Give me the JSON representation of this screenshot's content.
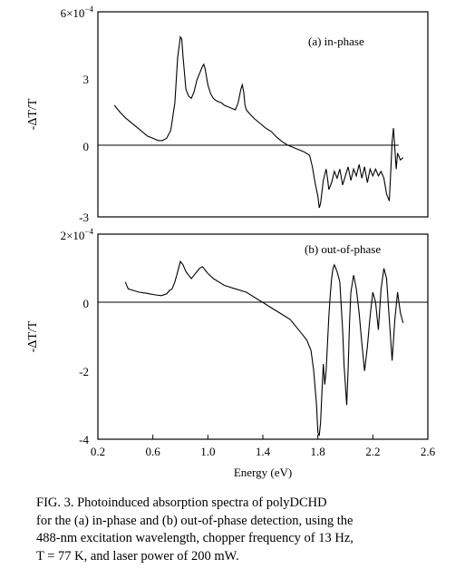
{
  "chart_data": [
    {
      "type": "line",
      "panel_label": "(a)  in-phase",
      "ylabel": "-ΔT/T",
      "y_scale_label": "6×10",
      "y_scale_exp": "−4",
      "ylim": [
        -3,
        6
      ],
      "xlim": [
        0.2,
        2.6
      ],
      "y_ticks": [
        "0",
        "3",
        "-3"
      ],
      "series": [
        {
          "x": [
            0.32,
            0.36,
            0.4,
            0.44,
            0.48,
            0.52,
            0.56,
            0.6,
            0.64,
            0.67,
            0.7,
            0.73,
            0.76,
            0.78,
            0.8,
            0.81,
            0.82,
            0.84,
            0.86,
            0.88,
            0.9,
            0.92,
            0.94,
            0.96,
            0.97,
            0.98,
            1.0,
            1.02,
            1.04,
            1.06,
            1.08,
            1.1,
            1.12,
            1.14,
            1.16,
            1.18,
            1.2,
            1.22,
            1.24,
            1.25,
            1.26,
            1.27,
            1.28,
            1.3,
            1.34,
            1.38,
            1.42,
            1.46,
            1.5,
            1.54,
            1.58,
            1.62,
            1.66,
            1.7,
            1.74,
            1.76,
            1.78,
            1.8,
            1.81,
            1.82,
            1.84,
            1.86,
            1.87,
            1.88,
            1.9,
            1.92,
            1.94,
            1.96,
            1.98,
            2.0,
            2.02,
            2.04,
            2.06,
            2.08,
            2.1,
            2.12,
            2.14,
            2.16,
            2.18,
            2.2,
            2.22,
            2.24,
            2.26,
            2.28,
            2.3,
            2.32,
            2.33,
            2.34,
            2.35,
            2.36,
            2.37,
            2.38,
            2.4,
            2.42
          ],
          "y": [
            1.9,
            1.6,
            1.35,
            1.15,
            0.95,
            0.75,
            0.55,
            0.45,
            0.35,
            0.35,
            0.45,
            0.8,
            2.0,
            4.0,
            4.9,
            4.8,
            4.0,
            2.6,
            2.3,
            2.2,
            2.5,
            3.0,
            3.3,
            3.6,
            3.7,
            3.5,
            2.8,
            2.4,
            2.2,
            2.1,
            2.05,
            2.0,
            1.9,
            1.85,
            1.8,
            1.75,
            1.7,
            2.0,
            2.6,
            2.8,
            2.5,
            1.9,
            1.7,
            1.55,
            1.3,
            1.1,
            0.9,
            0.75,
            0.5,
            0.3,
            0.15,
            0.05,
            -0.05,
            -0.15,
            -0.3,
            -0.8,
            -1.5,
            -2.1,
            -2.6,
            -2.4,
            -1.4,
            -0.9,
            -1.3,
            -1.8,
            -1.5,
            -1.0,
            -1.3,
            -0.9,
            -1.6,
            -1.2,
            -0.8,
            -1.4,
            -0.9,
            -1.2,
            -0.7,
            -1.3,
            -0.8,
            -1.5,
            -0.9,
            -1.2,
            -0.9,
            -1.2,
            -1.0,
            -1.3,
            -2.0,
            -2.3,
            -1.0,
            0.3,
            0.9,
            0.0,
            -0.9,
            -0.2,
            -0.5,
            -0.4
          ]
        }
      ]
    },
    {
      "type": "line",
      "panel_label": "(b)  out-of-phase",
      "ylabel": "-ΔT/T",
      "y_scale_label": "2×10",
      "y_scale_exp": "−4",
      "ylim": [
        -4,
        2
      ],
      "xlim": [
        0.2,
        2.6
      ],
      "xlabel": "Energy (eV)",
      "y_ticks": [
        "0",
        "-2",
        "-4"
      ],
      "x_ticks": [
        "0.2",
        "0.6",
        "1.0",
        "1.4",
        "1.8",
        "2.2",
        "2.6"
      ],
      "series": [
        {
          "x": [
            0.4,
            0.42,
            0.46,
            0.5,
            0.54,
            0.58,
            0.62,
            0.66,
            0.7,
            0.72,
            0.74,
            0.76,
            0.78,
            0.8,
            0.82,
            0.84,
            0.86,
            0.88,
            0.9,
            0.92,
            0.94,
            0.96,
            0.98,
            1.0,
            1.04,
            1.08,
            1.12,
            1.16,
            1.2,
            1.24,
            1.28,
            1.32,
            1.36,
            1.4,
            1.44,
            1.48,
            1.52,
            1.56,
            1.6,
            1.64,
            1.68,
            1.72,
            1.75,
            1.77,
            1.79,
            1.8,
            1.81,
            1.82,
            1.83,
            1.84,
            1.85,
            1.86,
            1.87,
            1.88,
            1.89,
            1.9,
            1.91,
            1.92,
            1.94,
            1.96,
            1.98,
            1.99,
            2.0,
            2.01,
            2.02,
            2.03,
            2.04,
            2.06,
            2.08,
            2.1,
            2.12,
            2.14,
            2.16,
            2.18,
            2.2,
            2.22,
            2.24,
            2.26,
            2.28,
            2.3,
            2.32,
            2.34,
            2.36,
            2.38,
            2.4,
            2.42
          ],
          "y": [
            0.6,
            0.4,
            0.35,
            0.3,
            0.28,
            0.25,
            0.22,
            0.2,
            0.25,
            0.35,
            0.4,
            0.6,
            0.9,
            1.2,
            1.1,
            0.9,
            0.8,
            0.7,
            0.8,
            0.9,
            1.0,
            1.05,
            0.95,
            0.85,
            0.7,
            0.6,
            0.5,
            0.45,
            0.4,
            0.35,
            0.3,
            0.2,
            0.1,
            0.0,
            -0.1,
            -0.2,
            -0.3,
            -0.4,
            -0.5,
            -0.7,
            -0.9,
            -1.1,
            -1.4,
            -2.0,
            -3.0,
            -3.8,
            -3.9,
            -3.5,
            -2.6,
            -1.8,
            -2.4,
            -2.0,
            -1.2,
            -0.4,
            0.2,
            0.7,
            1.0,
            1.1,
            0.9,
            0.6,
            -0.8,
            -1.8,
            -2.4,
            -3.0,
            -2.0,
            -0.6,
            0.3,
            0.8,
            0.4,
            -0.3,
            -1.2,
            -2.0,
            -1.3,
            -0.4,
            0.3,
            0.0,
            -0.8,
            0.4,
            1.0,
            0.7,
            -0.5,
            -1.7,
            -0.5,
            0.3,
            -0.3,
            -0.6
          ]
        }
      ]
    }
  ],
  "caption": {
    "line1": "FIG. 3.  Photoinduced absorption spectra of polyDCHD",
    "line2": "for the (a) in-phase and (b) out-of-phase detection, using the",
    "line3": "488-nm excitation wavelength, chopper frequency of 13 Hz,",
    "line4": "T = 77 K, and laser power of 200 mW."
  }
}
